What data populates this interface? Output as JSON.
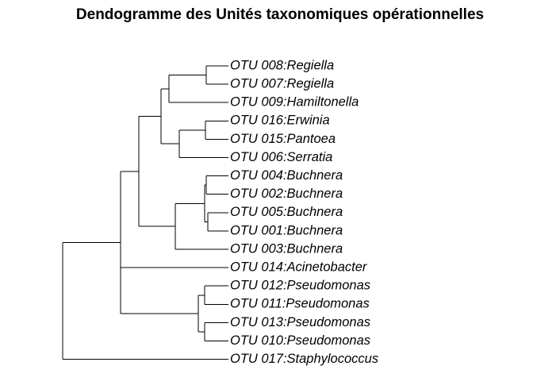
{
  "title": "Dendogramme des Unités taxonomiques opérationnelles",
  "tree": {
    "leaves": [
      "OTU 008:Regiella",
      "OTU 007:Regiella",
      "OTU 009:Hamiltonella",
      "OTU 016:Erwinia",
      "OTU 015:Pantoea",
      "OTU 006:Serratia",
      "OTU 004:Buchnera",
      "OTU 002:Buchnera",
      "OTU 005:Buchnera",
      "OTU 001:Buchnera",
      "OTU 003:Buchnera",
      "OTU 014:Acinetobacter",
      "OTU 012:Pseudomonas",
      "OTU 011:Pseudomonas",
      "OTU 013:Pseudomonas",
      "OTU 010:Pseudomonas",
      "OTU 017:Staphylococcus"
    ],
    "line_color": "#000000"
  }
}
